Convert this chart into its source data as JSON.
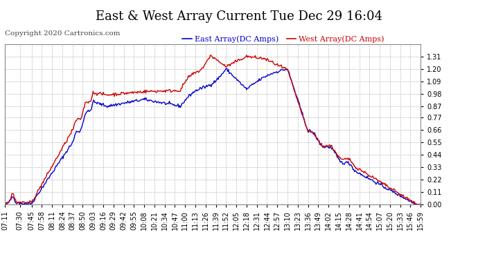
{
  "title": "East & West Array Current Tue Dec 29 16:04",
  "copyright": "Copyright 2020 Cartronics.com",
  "east_label": "East Array(DC Amps)",
  "west_label": "West Array(DC Amps)",
  "east_color": "#0000cc",
  "west_color": "#cc0000",
  "bg_color": "#ffffff",
  "plot_bg_color": "#ffffff",
  "grid_color": "#aaaaaa",
  "ylim": [
    0.0,
    1.42
  ],
  "yticks": [
    0.0,
    0.11,
    0.22,
    0.33,
    0.44,
    0.55,
    0.66,
    0.77,
    0.87,
    0.98,
    1.09,
    1.2,
    1.31
  ],
  "xtick_labels": [
    "07:11",
    "07:30",
    "07:45",
    "07:58",
    "08:11",
    "08:24",
    "08:37",
    "08:50",
    "09:03",
    "09:16",
    "09:29",
    "09:42",
    "09:55",
    "10:08",
    "10:21",
    "10:34",
    "10:47",
    "11:00",
    "11:13",
    "11:26",
    "11:39",
    "11:52",
    "12:05",
    "12:18",
    "12:31",
    "12:44",
    "12:57",
    "13:10",
    "13:23",
    "13:36",
    "13:49",
    "14:02",
    "14:15",
    "14:28",
    "14:41",
    "14:54",
    "15:07",
    "15:20",
    "15:33",
    "15:46",
    "15:59"
  ],
  "line_width": 1.0,
  "title_fontsize": 13,
  "legend_fontsize": 8,
  "tick_fontsize": 7,
  "copyright_fontsize": 7.5
}
